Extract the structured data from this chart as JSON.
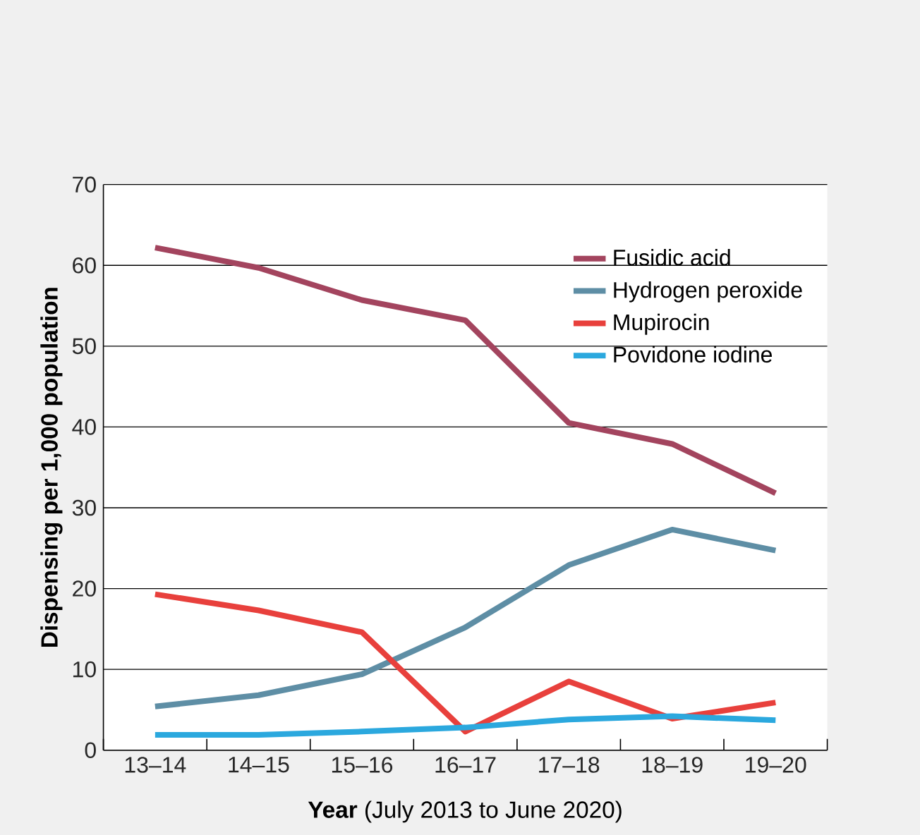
{
  "chart_data": {
    "type": "line",
    "xlabel": "**Year** (July 2013 to June 2020)",
    "ylabel": "Dispensing per 1,000 population",
    "categories": [
      "13–14",
      "14–15",
      "15–16",
      "16–17",
      "17–18",
      "18–19",
      "19–20"
    ],
    "series": [
      {
        "name": "Fusidic acid",
        "color": "#a3445e",
        "values": [
          62.2,
          59.7,
          55.7,
          53.2,
          40.5,
          37.9,
          31.8
        ]
      },
      {
        "name": "Hydrogen peroxide",
        "color": "#5e8ea5",
        "values": [
          5.4,
          6.8,
          9.4,
          15.2,
          22.9,
          27.3,
          24.7
        ]
      },
      {
        "name": "Mupirocin",
        "color": "#e8403c",
        "values": [
          19.3,
          17.3,
          14.6,
          2.3,
          8.5,
          3.9,
          5.9
        ]
      },
      {
        "name": "Povidone iodine",
        "color": "#2ba8de",
        "values": [
          1.9,
          1.9,
          2.3,
          2.8,
          3.8,
          4.2,
          3.7
        ]
      }
    ],
    "ylim": [
      0,
      70
    ],
    "yticks": [
      0,
      10,
      20,
      30,
      40,
      50,
      60,
      70
    ],
    "grid": "y",
    "legend": "top right",
    "marker": "none",
    "line_style": "solid"
  }
}
